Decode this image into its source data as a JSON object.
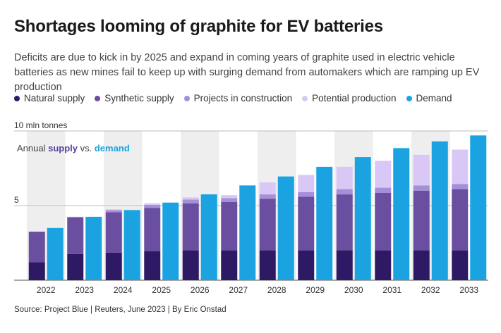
{
  "header": {
    "title": "Shortages looming of graphite for EV batteries",
    "subtitle": "Deficits are due to kick in by 2025 and expand in coming years of graphite used in electric vehicle batteries as new mines fail to keep up with surging demand from automakers which are ramping up EV production"
  },
  "legend": [
    {
      "label": "Natural supply",
      "color": "#2e1a64"
    },
    {
      "label": "Synthetic supply",
      "color": "#6a4ea0"
    },
    {
      "label": "Projects in construction",
      "color": "#a58fd8"
    },
    {
      "label": "Potential production",
      "color": "#d9c8f5"
    },
    {
      "label": "Demand",
      "color": "#1aa3e0"
    }
  ],
  "annotation": {
    "prefix": "Annual ",
    "supply": "supply",
    "middle": " vs. ",
    "demand": "demand"
  },
  "source": "Source: Project Blue | Reuters, June 2023 | By Eric Onstad",
  "chart_data": {
    "type": "bar",
    "title": "Shortages looming of graphite for EV batteries",
    "ylabel": "mln tonnes",
    "ylim": [
      0,
      10
    ],
    "y_tick_values": [
      5,
      10
    ],
    "y_tick_labels": [
      "5",
      "10 mln tonnes"
    ],
    "categories": [
      "2022",
      "2023",
      "2024",
      "2025",
      "2026",
      "2027",
      "2028",
      "2029",
      "2030",
      "2031",
      "2032",
      "2033"
    ],
    "supply_series": [
      {
        "name": "Natural supply",
        "values": [
          1.2,
          1.75,
          1.85,
          1.95,
          2.0,
          2.0,
          2.0,
          2.0,
          2.0,
          2.0,
          2.0,
          2.0
        ]
      },
      {
        "name": "Synthetic supply",
        "values": [
          2.05,
          2.45,
          2.7,
          2.9,
          3.15,
          3.25,
          3.45,
          3.6,
          3.75,
          3.85,
          4.0,
          4.1
        ]
      },
      {
        "name": "Projects in construction",
        "values": [
          0.0,
          0.05,
          0.15,
          0.2,
          0.25,
          0.25,
          0.3,
          0.3,
          0.35,
          0.35,
          0.35,
          0.35
        ]
      },
      {
        "name": "Potential production",
        "values": [
          0.0,
          0.0,
          0.05,
          0.1,
          0.15,
          0.2,
          0.8,
          1.15,
          1.5,
          1.8,
          2.05,
          2.3
        ]
      }
    ],
    "demand": {
      "name": "Demand",
      "values": [
        3.5,
        4.25,
        4.7,
        5.2,
        5.75,
        6.35,
        6.95,
        7.6,
        8.25,
        8.85,
        9.3,
        9.7
      ]
    },
    "grid": "alternating column bands"
  }
}
